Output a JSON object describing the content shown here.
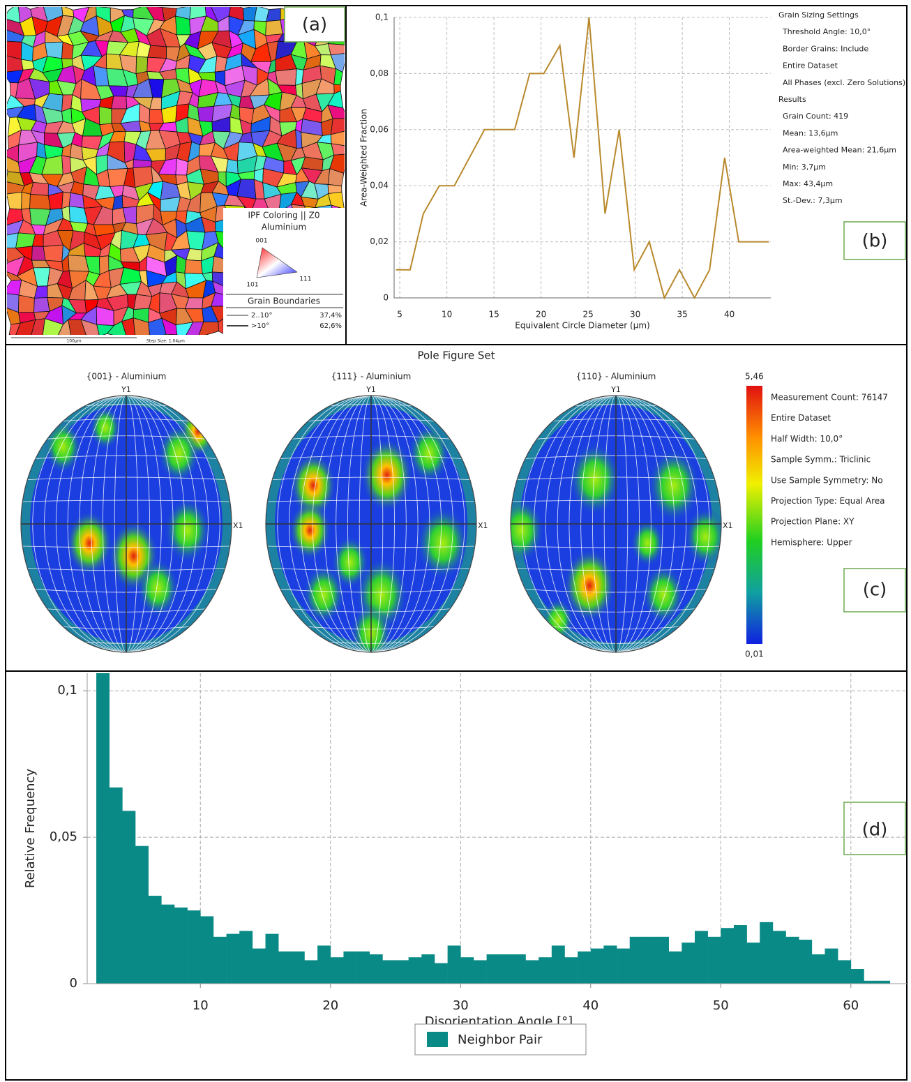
{
  "chart_data": [
    {
      "type": "line",
      "x": [
        4.6,
        6.1,
        7.5,
        9.2,
        10.8,
        14.0,
        17.2,
        18.8,
        20.3,
        22.0,
        23.5,
        25.1,
        26.8,
        28.3,
        29.9,
        31.5,
        33.1,
        34.7,
        36.3,
        37.9,
        39.5,
        41.0,
        44.2
      ],
      "values": [
        0.01,
        0.01,
        0.03,
        0.04,
        0.04,
        0.06,
        0.06,
        0.08,
        0.08,
        0.09,
        0.05,
        0.1,
        0.03,
        0.06,
        0.01,
        0.02,
        0,
        0.01,
        0,
        0.01,
        0.05,
        0.02,
        0.02
      ],
      "color": "#b8892c",
      "xlim": [
        4.4,
        44.4
      ],
      "xticks": [
        5,
        10,
        15,
        20,
        25,
        30,
        35,
        40
      ],
      "ylim": [
        0,
        0.1
      ],
      "yticks": [
        0,
        {
          "value": 0.02,
          "label": "0,02"
        },
        {
          "value": 0.04,
          "label": "0,04"
        },
        {
          "value": 0.06,
          "label": "0,06"
        },
        {
          "value": 0.08,
          "label": "0,08"
        },
        {
          "value": 0.1,
          "label": "0,1"
        }
      ],
      "grid": true,
      "x_label": "Equivalent Circle Diameter (µm)",
      "y_label": "Area-Weighted Fraction",
      "annotations": [
        "Grain Sizing Settings",
        "Threshold Angle: 10,0°",
        "Border Grains: Include",
        "Entire Dataset",
        "All Phases (excl. Zero Solutions)",
        "Results",
        "Grain Count: 419",
        "Mean: 13,6µm",
        "Area-weighted Mean: 21,6µm",
        "Min: 3,7µm",
        "Max: 43,4µm",
        "St.-Dev.: 7,3µm"
      ],
      "panel_label": "(b)"
    },
    {
      "type": "histogram",
      "bins": [
        2,
        3,
        4,
        5,
        6,
        7,
        8,
        9,
        10,
        11,
        12,
        13,
        14,
        15,
        16,
        17,
        18,
        19,
        20,
        21,
        22,
        23,
        24,
        25,
        26,
        27,
        28,
        29,
        30,
        31,
        32,
        33,
        34,
        35,
        36,
        37,
        38,
        39,
        40,
        41,
        42,
        43,
        44,
        45,
        46,
        47,
        48,
        49,
        50,
        51,
        52,
        53,
        54,
        55,
        56,
        57,
        58,
        59,
        60,
        61,
        62,
        63
      ],
      "series": [
        {
          "name": "Neighbor Pair",
          "color": "#0a8a86",
          "values": [
            0.106,
            0.067,
            0.059,
            0.047,
            0.03,
            0.027,
            0.026,
            0.025,
            0.023,
            0.016,
            0.017,
            0.018,
            0.012,
            0.017,
            0.011,
            0.011,
            0.008,
            0.013,
            0.009,
            0.011,
            0.011,
            0.01,
            0.008,
            0.008,
            0.009,
            0.01,
            0.007,
            0.013,
            0.009,
            0.008,
            0.01,
            0.01,
            0.01,
            0.008,
            0.009,
            0.013,
            0.009,
            0.011,
            0.012,
            0.013,
            0.012,
            0.016,
            0.016,
            0.016,
            0.011,
            0.014,
            0.018,
            0.016,
            0.019,
            0.02,
            0.014,
            0.021,
            0.018,
            0.016,
            0.015,
            0.01,
            0.012,
            0.008,
            0.005,
            0.001,
            0.001
          ]
        }
      ],
      "xlim": [
        1.3,
        64.3
      ],
      "xticks": [
        10,
        20,
        30,
        40,
        50,
        60
      ],
      "ylim": [
        0,
        0.106
      ],
      "yticks": [
        0,
        {
          "value": 0.05,
          "label": "0,05"
        },
        {
          "value": 0.1,
          "label": "0,1"
        }
      ],
      "grid": true,
      "x_label": "Disorientation Angle [°]",
      "y_label": "Relative Frequency",
      "panel_label": "(d)"
    }
  ],
  "panel_a": {
    "label": "(a)",
    "legend_title": "IPF Coloring || Z0",
    "phase": "Aluminium",
    "poles": [
      "001",
      "101",
      "111"
    ],
    "boundaries_title": "Grain Boundaries",
    "boundaries": [
      {
        "range": "2..10°",
        "fraction": "37,4%"
      },
      {
        "range": ">10°",
        "fraction": "62,6%"
      }
    ],
    "scale_bar": "100µm",
    "step_size": "Step Size: 1,04µm"
  },
  "panel_c": {
    "label": "(c)",
    "title": "Pole Figure Set",
    "figures": [
      "{001} - Aluminium",
      "{111} - Aluminium",
      "{110} - Aluminium"
    ],
    "axis_y": "Y1",
    "axis_x": "X1",
    "colorbar_max": "5,46",
    "colorbar_min": "0,01",
    "info": [
      "Measurement Count: 76147",
      "Entire Dataset",
      "Half Width: 10,0°",
      "Sample Symm.: Triclinic",
      "Use Sample Symmetry: No",
      "Projection Type: Equal Area",
      "Projection Plane: XY",
      "Hemisphere: Upper"
    ]
  }
}
